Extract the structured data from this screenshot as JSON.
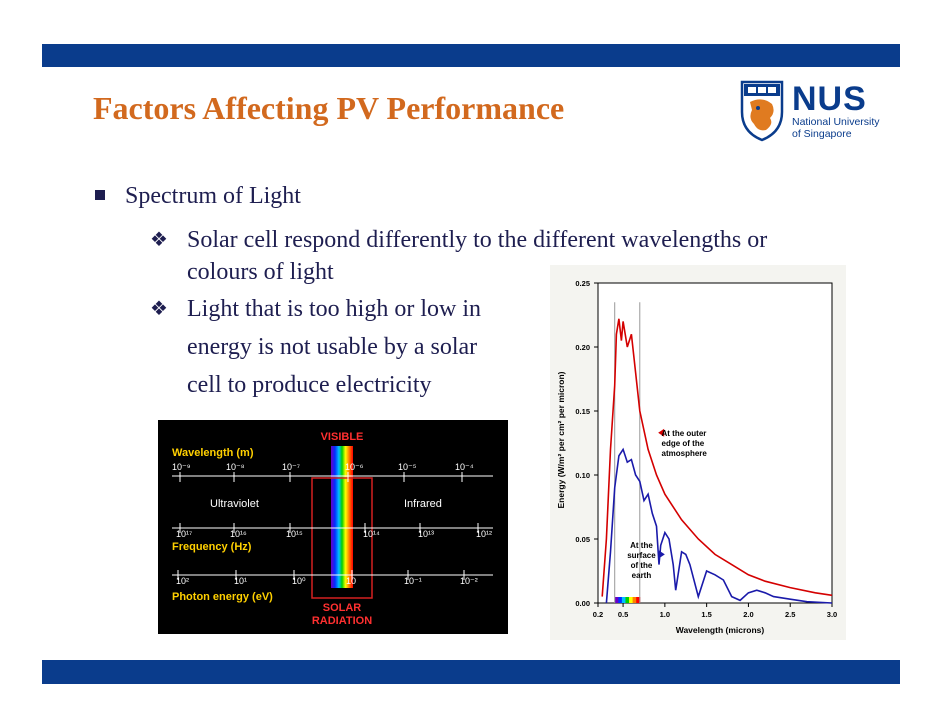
{
  "header": {
    "title": "Factors Affecting PV Performance",
    "logo": {
      "name": "NUS",
      "line1": "National University",
      "line2": "of Singapore",
      "color": "#0a3c8c"
    }
  },
  "content": {
    "bullet1": "Spectrum of Light",
    "sub_bullets": [
      {
        "line1": "Solar cell respond differently to the different wavelengths or",
        "line2": "colours of light"
      },
      {
        "line1": "Light that is too high or low in",
        "line2": "energy is not usable by a solar",
        "line3": "cell to produce electricity"
      }
    ]
  },
  "spectrum_figure": {
    "visible_label": "VISIBLE",
    "wavelength_label": "Wavelength (m)",
    "wavelength_ticks": [
      "10⁻⁹",
      "10⁻⁸",
      "10⁻⁷",
      "10⁻⁶",
      "10⁻⁵",
      "10⁻⁴"
    ],
    "uv_label": "Ultraviolet",
    "ir_label": "Infrared",
    "frequency_ticks": [
      "10¹⁷",
      "10¹⁶",
      "10¹⁵",
      "10¹⁴",
      "10¹³",
      "10¹²"
    ],
    "frequency_label": "Frequency (Hz)",
    "energy_ticks": [
      "10²",
      "10¹",
      "10⁰",
      "10⁻¹",
      "10⁻²"
    ],
    "energy_ticks_extra": "10",
    "energy_label": "Photon energy (eV)",
    "solar_line1": "SOLAR",
    "solar_line2": "RADIATION"
  },
  "chart_data": {
    "type": "line",
    "xlabel": "Wavelength (microns)",
    "ylabel": "Energy (W/m² per cm² per micron)",
    "xlim": [
      0.2,
      3.0
    ],
    "ylim": [
      0.0,
      0.25
    ],
    "x_ticks": [
      "0.2",
      "0.5",
      "1.0",
      "1.5",
      "2.0",
      "2.5",
      "3.0"
    ],
    "y_ticks": [
      "0.00",
      "0.05",
      "0.10",
      "0.15",
      "0.20",
      "0.25"
    ],
    "series": [
      {
        "name": "At the outer edge of the atmosphere",
        "color": "#d40000",
        "x": [
          0.25,
          0.3,
          0.35,
          0.4,
          0.42,
          0.45,
          0.48,
          0.5,
          0.55,
          0.6,
          0.65,
          0.7,
          0.8,
          0.9,
          1.0,
          1.2,
          1.4,
          1.6,
          1.8,
          2.0,
          2.2,
          2.5,
          2.8,
          3.0
        ],
        "y": [
          0.005,
          0.05,
          0.12,
          0.17,
          0.21,
          0.222,
          0.205,
          0.22,
          0.2,
          0.21,
          0.18,
          0.15,
          0.12,
          0.1,
          0.085,
          0.065,
          0.05,
          0.038,
          0.03,
          0.022,
          0.017,
          0.012,
          0.008,
          0.006
        ]
      },
      {
        "name": "At the surface of the earth",
        "color": "#1a1aaa",
        "x": [
          0.3,
          0.35,
          0.4,
          0.45,
          0.5,
          0.55,
          0.6,
          0.65,
          0.7,
          0.75,
          0.8,
          0.85,
          0.9,
          0.93,
          0.95,
          1.0,
          1.05,
          1.1,
          1.13,
          1.2,
          1.25,
          1.3,
          1.4,
          1.5,
          1.6,
          1.7,
          1.8,
          1.9,
          2.0,
          2.1,
          2.2,
          2.3,
          2.5,
          2.7,
          3.0
        ],
        "y": [
          0.0,
          0.04,
          0.09,
          0.115,
          0.12,
          0.11,
          0.112,
          0.1,
          0.095,
          0.08,
          0.085,
          0.07,
          0.06,
          0.03,
          0.045,
          0.055,
          0.05,
          0.03,
          0.01,
          0.04,
          0.038,
          0.03,
          0.005,
          0.025,
          0.022,
          0.018,
          0.005,
          0.002,
          0.008,
          0.01,
          0.008,
          0.005,
          0.003,
          0.001,
          0.0
        ]
      }
    ],
    "vertical_markers": [
      0.4,
      0.7
    ],
    "annotations": {
      "outer": [
        "At the outer",
        "edge of the",
        "atmosphere"
      ],
      "surface": [
        "At the",
        "surface",
        "of the",
        "earth"
      ]
    }
  }
}
